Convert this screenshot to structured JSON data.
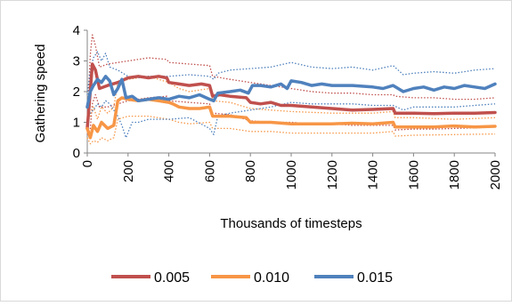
{
  "chart_data": {
    "type": "line",
    "title": "",
    "xlabel": "Thousands of timesteps",
    "ylabel": "Gathering speed",
    "xlim": [
      0,
      2000
    ],
    "ylim": [
      0,
      4
    ],
    "xticks": [
      "0",
      "200",
      "400",
      "600",
      "800",
      "1000",
      "1200",
      "1400",
      "1600",
      "1800",
      "2000"
    ],
    "yticks": [
      "0",
      "1",
      "2",
      "3",
      "4"
    ],
    "grid": false,
    "legend_position": "bottom",
    "series": [
      {
        "name": "0.005",
        "color": "#c0504d",
        "mean": [
          [
            0,
            0.8
          ],
          [
            15,
            2.0
          ],
          [
            25,
            2.9
          ],
          [
            40,
            2.7
          ],
          [
            60,
            2.1
          ],
          [
            100,
            2.2
          ],
          [
            150,
            2.3
          ],
          [
            200,
            2.45
          ],
          [
            250,
            2.5
          ],
          [
            300,
            2.45
          ],
          [
            350,
            2.5
          ],
          [
            390,
            2.45
          ],
          [
            400,
            2.3
          ],
          [
            450,
            2.25
          ],
          [
            500,
            2.2
          ],
          [
            560,
            2.25
          ],
          [
            600,
            2.2
          ],
          [
            615,
            1.85
          ],
          [
            650,
            1.9
          ],
          [
            700,
            1.85
          ],
          [
            780,
            1.8
          ],
          [
            800,
            1.65
          ],
          [
            850,
            1.6
          ],
          [
            900,
            1.65
          ],
          [
            950,
            1.55
          ],
          [
            1000,
            1.55
          ],
          [
            1100,
            1.5
          ],
          [
            1200,
            1.45
          ],
          [
            1300,
            1.4
          ],
          [
            1400,
            1.42
          ],
          [
            1500,
            1.45
          ],
          [
            1510,
            1.3
          ],
          [
            1600,
            1.3
          ],
          [
            1700,
            1.28
          ],
          [
            1800,
            1.3
          ],
          [
            1900,
            1.3
          ],
          [
            2000,
            1.32
          ]
        ],
        "upper": [
          [
            0,
            1.0
          ],
          [
            15,
            3.2
          ],
          [
            25,
            3.85
          ],
          [
            40,
            3.5
          ],
          [
            60,
            2.8
          ],
          [
            100,
            2.9
          ],
          [
            200,
            3.0
          ],
          [
            300,
            3.1
          ],
          [
            390,
            3.05
          ],
          [
            400,
            2.95
          ],
          [
            500,
            2.9
          ],
          [
            600,
            2.85
          ],
          [
            615,
            2.5
          ],
          [
            700,
            2.4
          ],
          [
            800,
            2.3
          ],
          [
            900,
            2.2
          ],
          [
            1000,
            2.1
          ],
          [
            1100,
            2.0
          ],
          [
            1200,
            1.95
          ],
          [
            1300,
            1.95
          ],
          [
            1400,
            1.9
          ],
          [
            1500,
            1.9
          ],
          [
            1510,
            1.85
          ],
          [
            1600,
            1.8
          ],
          [
            1700,
            1.8
          ],
          [
            1800,
            1.75
          ],
          [
            1900,
            1.75
          ],
          [
            2000,
            1.8
          ]
        ],
        "lower": [
          [
            0,
            0.6
          ],
          [
            15,
            0.8
          ],
          [
            25,
            1.6
          ],
          [
            40,
            1.9
          ],
          [
            60,
            1.5
          ],
          [
            100,
            1.5
          ],
          [
            200,
            1.7
          ],
          [
            300,
            1.8
          ],
          [
            390,
            1.85
          ],
          [
            400,
            1.7
          ],
          [
            500,
            1.65
          ],
          [
            600,
            1.6
          ],
          [
            615,
            1.3
          ],
          [
            700,
            1.25
          ],
          [
            800,
            1.05
          ],
          [
            900,
            1.0
          ],
          [
            1000,
            1.0
          ],
          [
            1100,
            0.95
          ],
          [
            1200,
            0.95
          ],
          [
            1300,
            0.9
          ],
          [
            1400,
            0.9
          ],
          [
            1500,
            0.9
          ],
          [
            1510,
            0.75
          ],
          [
            1600,
            0.78
          ],
          [
            1700,
            0.78
          ],
          [
            1800,
            0.8
          ],
          [
            1900,
            0.82
          ],
          [
            2000,
            0.85
          ]
        ]
      },
      {
        "name": "0.010",
        "color": "#f79646",
        "mean": [
          [
            0,
            0.8
          ],
          [
            15,
            0.5
          ],
          [
            30,
            0.9
          ],
          [
            50,
            0.7
          ],
          [
            70,
            1.0
          ],
          [
            100,
            0.8
          ],
          [
            130,
            0.9
          ],
          [
            150,
            1.7
          ],
          [
            170,
            1.8
          ],
          [
            200,
            1.75
          ],
          [
            250,
            1.7
          ],
          [
            300,
            1.75
          ],
          [
            350,
            1.7
          ],
          [
            400,
            1.65
          ],
          [
            420,
            1.6
          ],
          [
            450,
            1.5
          ],
          [
            500,
            1.45
          ],
          [
            550,
            1.45
          ],
          [
            600,
            1.5
          ],
          [
            615,
            1.2
          ],
          [
            700,
            1.2
          ],
          [
            780,
            1.15
          ],
          [
            800,
            1.0
          ],
          [
            850,
            1.0
          ],
          [
            900,
            1.0
          ],
          [
            1000,
            0.95
          ],
          [
            1100,
            0.95
          ],
          [
            1200,
            0.95
          ],
          [
            1300,
            0.97
          ],
          [
            1400,
            0.95
          ],
          [
            1500,
            1.0
          ],
          [
            1510,
            0.85
          ],
          [
            1600,
            0.85
          ],
          [
            1700,
            0.85
          ],
          [
            1800,
            0.88
          ],
          [
            1900,
            0.85
          ],
          [
            2000,
            0.87
          ]
        ],
        "upper": [
          [
            0,
            1.0
          ],
          [
            15,
            1.2
          ],
          [
            30,
            1.5
          ],
          [
            50,
            1.1
          ],
          [
            70,
            1.5
          ],
          [
            100,
            1.3
          ],
          [
            130,
            1.5
          ],
          [
            150,
            2.3
          ],
          [
            200,
            2.4
          ],
          [
            300,
            2.5
          ],
          [
            400,
            2.3
          ],
          [
            450,
            2.1
          ],
          [
            500,
            2.0
          ],
          [
            600,
            2.1
          ],
          [
            615,
            1.7
          ],
          [
            700,
            1.65
          ],
          [
            800,
            1.45
          ],
          [
            900,
            1.4
          ],
          [
            1000,
            1.35
          ],
          [
            1200,
            1.3
          ],
          [
            1400,
            1.3
          ],
          [
            1500,
            1.35
          ],
          [
            1510,
            1.15
          ],
          [
            1600,
            1.15
          ],
          [
            1800,
            1.1
          ],
          [
            2000,
            1.15
          ]
        ],
        "lower": [
          [
            0,
            0.5
          ],
          [
            15,
            0.3
          ],
          [
            30,
            0.4
          ],
          [
            50,
            0.35
          ],
          [
            70,
            0.5
          ],
          [
            100,
            0.4
          ],
          [
            130,
            0.5
          ],
          [
            150,
            1.1
          ],
          [
            200,
            1.2
          ],
          [
            300,
            1.2
          ],
          [
            400,
            1.1
          ],
          [
            450,
            1.0
          ],
          [
            500,
            0.95
          ],
          [
            600,
            1.0
          ],
          [
            615,
            0.8
          ],
          [
            700,
            0.8
          ],
          [
            800,
            0.7
          ],
          [
            900,
            0.7
          ],
          [
            1000,
            0.65
          ],
          [
            1200,
            0.65
          ],
          [
            1400,
            0.65
          ],
          [
            1500,
            0.7
          ],
          [
            1510,
            0.55
          ],
          [
            1600,
            0.58
          ],
          [
            1800,
            0.6
          ],
          [
            2000,
            0.62
          ]
        ]
      },
      {
        "name": "0.015",
        "color": "#4f81bd",
        "mean": [
          [
            0,
            1.5
          ],
          [
            15,
            2.0
          ],
          [
            30,
            2.2
          ],
          [
            50,
            2.4
          ],
          [
            70,
            2.3
          ],
          [
            90,
            2.5
          ],
          [
            110,
            2.35
          ],
          [
            130,
            1.9
          ],
          [
            150,
            2.1
          ],
          [
            170,
            2.4
          ],
          [
            190,
            1.8
          ],
          [
            220,
            1.85
          ],
          [
            250,
            1.7
          ],
          [
            300,
            1.75
          ],
          [
            350,
            1.8
          ],
          [
            400,
            1.75
          ],
          [
            450,
            1.85
          ],
          [
            500,
            1.8
          ],
          [
            550,
            1.9
          ],
          [
            600,
            1.75
          ],
          [
            620,
            1.7
          ],
          [
            640,
            1.95
          ],
          [
            700,
            2.0
          ],
          [
            750,
            2.05
          ],
          [
            790,
            1.95
          ],
          [
            810,
            2.2
          ],
          [
            850,
            2.2
          ],
          [
            900,
            2.15
          ],
          [
            950,
            2.25
          ],
          [
            980,
            2.1
          ],
          [
            1000,
            2.35
          ],
          [
            1050,
            2.3
          ],
          [
            1100,
            2.2
          ],
          [
            1150,
            2.25
          ],
          [
            1200,
            2.2
          ],
          [
            1300,
            2.2
          ],
          [
            1400,
            2.15
          ],
          [
            1450,
            2.1
          ],
          [
            1500,
            2.2
          ],
          [
            1550,
            2.0
          ],
          [
            1600,
            2.1
          ],
          [
            1650,
            2.15
          ],
          [
            1700,
            2.05
          ],
          [
            1750,
            2.15
          ],
          [
            1800,
            2.1
          ],
          [
            1850,
            2.2
          ],
          [
            1900,
            2.15
          ],
          [
            1950,
            2.1
          ],
          [
            2000,
            2.25
          ]
        ],
        "upper": [
          [
            0,
            1.9
          ],
          [
            15,
            2.7
          ],
          [
            30,
            3.1
          ],
          [
            50,
            3.3
          ],
          [
            70,
            3.0
          ],
          [
            90,
            3.25
          ],
          [
            110,
            2.8
          ],
          [
            150,
            2.7
          ],
          [
            200,
            2.5
          ],
          [
            250,
            2.45
          ],
          [
            300,
            2.5
          ],
          [
            400,
            2.5
          ],
          [
            500,
            2.55
          ],
          [
            600,
            2.5
          ],
          [
            620,
            2.4
          ],
          [
            640,
            2.6
          ],
          [
            700,
            2.7
          ],
          [
            800,
            2.75
          ],
          [
            900,
            2.8
          ],
          [
            1000,
            2.95
          ],
          [
            1100,
            2.8
          ],
          [
            1200,
            2.75
          ],
          [
            1300,
            2.8
          ],
          [
            1400,
            2.7
          ],
          [
            1500,
            2.85
          ],
          [
            1550,
            2.55
          ],
          [
            1600,
            2.6
          ],
          [
            1700,
            2.65
          ],
          [
            1800,
            2.6
          ],
          [
            1900,
            2.7
          ],
          [
            2000,
            2.75
          ]
        ],
        "lower": [
          [
            0,
            1.1
          ],
          [
            15,
            1.3
          ],
          [
            30,
            1.4
          ],
          [
            50,
            1.6
          ],
          [
            70,
            1.5
          ],
          [
            90,
            1.7
          ],
          [
            110,
            1.6
          ],
          [
            150,
            1.2
          ],
          [
            170,
            0.9
          ],
          [
            190,
            0.5
          ],
          [
            220,
            1.0
          ],
          [
            250,
            1.0
          ],
          [
            300,
            1.1
          ],
          [
            400,
            1.1
          ],
          [
            500,
            1.15
          ],
          [
            600,
            0.8
          ],
          [
            620,
            0.6
          ],
          [
            640,
            1.2
          ],
          [
            700,
            1.3
          ],
          [
            800,
            1.4
          ],
          [
            900,
            1.5
          ],
          [
            1000,
            1.65
          ],
          [
            1100,
            1.6
          ],
          [
            1200,
            1.6
          ],
          [
            1300,
            1.6
          ],
          [
            1400,
            1.55
          ],
          [
            1500,
            1.55
          ],
          [
            1550,
            1.4
          ],
          [
            1600,
            1.5
          ],
          [
            1700,
            1.5
          ],
          [
            1800,
            1.5
          ],
          [
            1900,
            1.55
          ],
          [
            2000,
            1.6
          ]
        ]
      }
    ]
  }
}
